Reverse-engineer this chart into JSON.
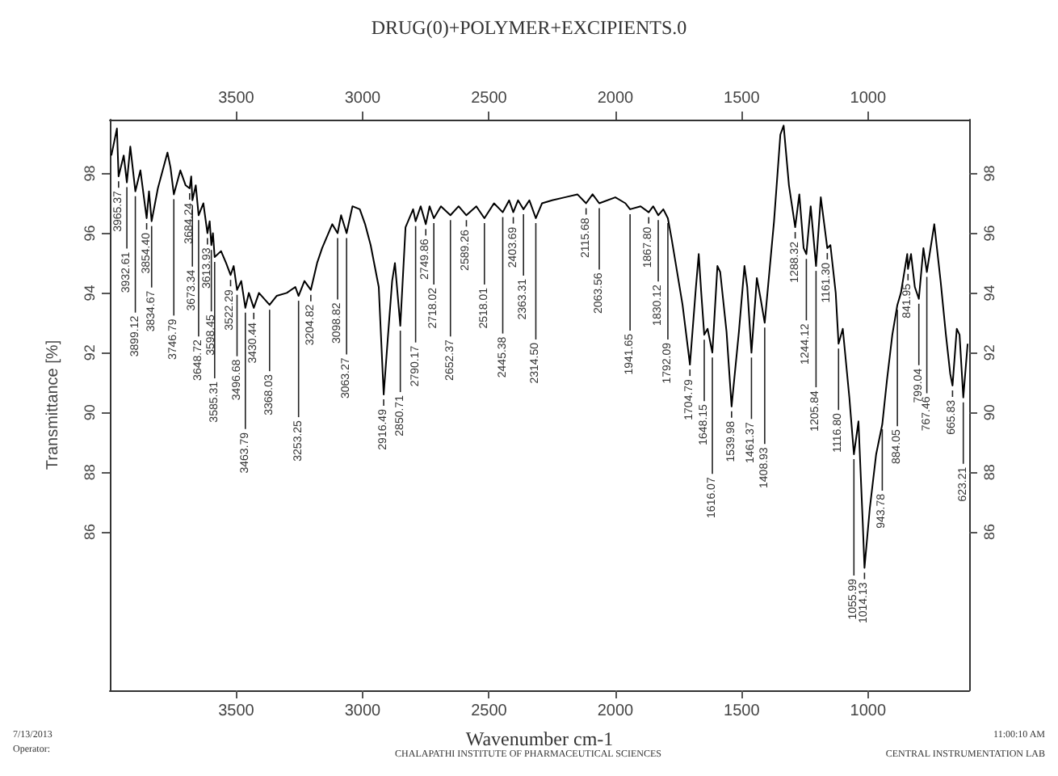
{
  "chart_data": {
    "type": "line",
    "title": "DRUG(0)+POLYMER+EXCIPIENTS.0",
    "xlabel": "Wavenumber cm-1",
    "ylabel": "Transmittance [%]",
    "xlim": [
      4000,
      600
    ],
    "xticks": [
      3500,
      3000,
      2500,
      2000,
      1500,
      1000
    ],
    "x2lim": [
      4000,
      600
    ],
    "x2ticks": [
      3500,
      3000,
      2500,
      2000,
      1500,
      1000
    ],
    "ylim": [
      80.7,
      99.8
    ],
    "yticks": [
      86,
      88,
      90,
      92,
      94,
      96,
      98
    ],
    "y2lim": [
      80.7,
      99.8
    ],
    "y2ticks": [
      86,
      88,
      90,
      92,
      94,
      96,
      98
    ],
    "grid": false,
    "marker": "none",
    "series": [
      {
        "color": "#000000",
        "x": [
          3994,
          3972,
          3965.37,
          3945,
          3932.61,
          3919,
          3899.12,
          3879,
          3854.4,
          3845,
          3834.67,
          3810,
          3772,
          3760,
          3746.79,
          3721,
          3700,
          3684.24,
          3678,
          3673.34,
          3660,
          3648.72,
          3630,
          3613.93,
          3605,
          3598.45,
          3592,
          3585.31,
          3560,
          3540,
          3522.29,
          3510,
          3496.68,
          3480,
          3463.79,
          3450,
          3430.44,
          3410,
          3368.03,
          3340,
          3300,
          3266,
          3253.25,
          3230,
          3204.82,
          3180,
          3160,
          3120,
          3098.82,
          3085,
          3063.27,
          3040,
          3011,
          2990,
          2968,
          2936,
          2916.49,
          2900,
          2883,
          2872,
          2850.71,
          2830,
          2800,
          2790.17,
          2770,
          2749.86,
          2735,
          2718.02,
          2690,
          2652.37,
          2620,
          2589.26,
          2550,
          2518.01,
          2480,
          2445.38,
          2420,
          2403.69,
          2385,
          2363.31,
          2340,
          2314.5,
          2290,
          2250,
          2200,
          2150,
          2115.68,
          2090,
          2063.56,
          2000,
          1960,
          1941.65,
          1900,
          1867.8,
          1850,
          1830.12,
          1810,
          1792.09,
          1777,
          1734,
          1704.79,
          1681,
          1670,
          1660,
          1648.15,
          1635,
          1616.07,
          1596,
          1585,
          1560,
          1539.98,
          1511,
          1489,
          1478,
          1461.37,
          1440,
          1425,
          1408.93,
          1372,
          1347,
          1334,
          1313,
          1288.32,
          1272,
          1255,
          1244.12,
          1227,
          1205.84,
          1187,
          1161.3,
          1149,
          1128,
          1116.8,
          1100,
          1074,
          1055.99,
          1038,
          1021,
          1014.13,
          993,
          968,
          943.78,
          925,
          904,
          884.05,
          870,
          845,
          841.95,
          830,
          815,
          799.04,
          781,
          767.46,
          738,
          713,
          692,
          675,
          665.83,
          649,
          638,
          623.21,
          606
        ],
        "values": [
          98.6,
          99.5,
          97.9,
          98.6,
          97.7,
          98.9,
          97.4,
          98.1,
          96.5,
          97.4,
          96.4,
          97.5,
          98.7,
          98.2,
          97.3,
          98.1,
          97.6,
          97.5,
          97.9,
          97.1,
          97.6,
          96.6,
          97.0,
          96.0,
          96.4,
          95.6,
          96.0,
          95.2,
          95.4,
          95.0,
          94.6,
          94.9,
          94.1,
          94.4,
          93.5,
          94.0,
          93.5,
          94.0,
          93.6,
          93.9,
          94.0,
          94.2,
          93.9,
          94.4,
          94.1,
          95.0,
          95.5,
          96.3,
          96.0,
          96.6,
          96.0,
          96.9,
          96.8,
          96.3,
          95.6,
          94.2,
          90.6,
          92.5,
          94.4,
          95.0,
          92.9,
          96.2,
          96.8,
          96.4,
          96.9,
          96.3,
          96.9,
          96.5,
          96.9,
          96.6,
          96.9,
          96.6,
          96.9,
          96.5,
          97.0,
          96.7,
          97.1,
          96.7,
          97.1,
          96.8,
          97.1,
          96.5,
          97.0,
          97.1,
          97.2,
          97.3,
          97.0,
          97.3,
          97.0,
          97.2,
          97.0,
          96.8,
          96.9,
          96.7,
          96.9,
          96.6,
          96.8,
          96.5,
          95.8,
          93.6,
          91.6,
          94.2,
          95.3,
          94.0,
          92.6,
          92.8,
          92.0,
          94.9,
          94.7,
          92.7,
          90.2,
          92.7,
          94.9,
          94.2,
          92.0,
          94.5,
          93.8,
          93.0,
          96.4,
          99.3,
          99.6,
          97.6,
          96.2,
          97.3,
          95.5,
          95.3,
          96.9,
          94.9,
          97.2,
          95.5,
          95.6,
          94.0,
          92.3,
          92.8,
          90.5,
          88.6,
          89.7,
          86.3,
          84.8,
          86.8,
          88.6,
          89.6,
          91.1,
          92.6,
          93.6,
          94.0,
          95.3,
          94.8,
          95.3,
          94.2,
          93.8,
          95.5,
          94.7,
          96.3,
          94.4,
          92.6,
          91.3,
          90.9,
          92.8,
          92.6,
          90.5,
          92.3
        ]
      }
    ],
    "annotations": [
      {
        "text": "3965.37",
        "x": 3965.37,
        "y": 97.9
      },
      {
        "text": "3932.61",
        "x": 3932.61,
        "y": 97.7
      },
      {
        "text": "3899.12",
        "x": 3899.12,
        "y": 97.4
      },
      {
        "text": "3854.40",
        "x": 3854.4,
        "y": 96.5
      },
      {
        "text": "3834.67",
        "x": 3834.67,
        "y": 96.4
      },
      {
        "text": "3746.79",
        "x": 3746.79,
        "y": 97.3
      },
      {
        "text": "3684.24",
        "x": 3684.24,
        "y": 97.5
      },
      {
        "text": "3673.34",
        "x": 3673.34,
        "y": 97.1
      },
      {
        "text": "3648.72",
        "x": 3648.72,
        "y": 96.6
      },
      {
        "text": "3613.93",
        "x": 3613.93,
        "y": 96.0
      },
      {
        "text": "3598.45",
        "x": 3598.45,
        "y": 95.6
      },
      {
        "text": "3585.31",
        "x": 3585.31,
        "y": 95.2
      },
      {
        "text": "3522.29",
        "x": 3522.29,
        "y": 94.6
      },
      {
        "text": "3496.68",
        "x": 3496.68,
        "y": 94.1
      },
      {
        "text": "3463.79",
        "x": 3463.79,
        "y": 93.5
      },
      {
        "text": "3430.44",
        "x": 3430.44,
        "y": 93.5
      },
      {
        "text": "3368.03",
        "x": 3368.03,
        "y": 93.6
      },
      {
        "text": "3253.25",
        "x": 3253.25,
        "y": 93.9
      },
      {
        "text": "3204.82",
        "x": 3204.82,
        "y": 94.1
      },
      {
        "text": "3098.82",
        "x": 3098.82,
        "y": 96.0
      },
      {
        "text": "3063.27",
        "x": 3063.27,
        "y": 96.0
      },
      {
        "text": "2916.49",
        "x": 2916.49,
        "y": 90.6
      },
      {
        "text": "2850.71",
        "x": 2850.71,
        "y": 92.9
      },
      {
        "text": "2790.17",
        "x": 2790.17,
        "y": 96.4
      },
      {
        "text": "2749.86",
        "x": 2749.86,
        "y": 96.3
      },
      {
        "text": "2718.02",
        "x": 2718.02,
        "y": 96.5
      },
      {
        "text": "2652.37",
        "x": 2652.37,
        "y": 96.6
      },
      {
        "text": "2589.26",
        "x": 2589.26,
        "y": 96.6
      },
      {
        "text": "2518.01",
        "x": 2518.01,
        "y": 96.5
      },
      {
        "text": "2445.38",
        "x": 2445.38,
        "y": 96.7
      },
      {
        "text": "2403.69",
        "x": 2403.69,
        "y": 96.7
      },
      {
        "text": "2363.31",
        "x": 2363.31,
        "y": 96.8
      },
      {
        "text": "2314.50",
        "x": 2314.5,
        "y": 96.5
      },
      {
        "text": "2115.68",
        "x": 2115.68,
        "y": 97.0
      },
      {
        "text": "2063.56",
        "x": 2063.56,
        "y": 97.0
      },
      {
        "text": "1941.65",
        "x": 1941.65,
        "y": 96.8
      },
      {
        "text": "1867.80",
        "x": 1867.8,
        "y": 96.7
      },
      {
        "text": "1830.12",
        "x": 1830.12,
        "y": 96.6
      },
      {
        "text": "1792.09",
        "x": 1792.09,
        "y": 96.5
      },
      {
        "text": "1704.79",
        "x": 1704.79,
        "y": 91.6
      },
      {
        "text": "1648.15",
        "x": 1648.15,
        "y": 92.6
      },
      {
        "text": "1616.07",
        "x": 1616.07,
        "y": 92.0
      },
      {
        "text": "1539.98",
        "x": 1539.98,
        "y": 90.2
      },
      {
        "text": "1461.37",
        "x": 1461.37,
        "y": 92.0
      },
      {
        "text": "1408.93",
        "x": 1408.93,
        "y": 93.0
      },
      {
        "text": "1288.32",
        "x": 1288.32,
        "y": 96.2
      },
      {
        "text": "1244.12",
        "x": 1244.12,
        "y": 95.3
      },
      {
        "text": "1205.84",
        "x": 1205.84,
        "y": 94.9
      },
      {
        "text": "1161.30",
        "x": 1161.3,
        "y": 95.5
      },
      {
        "text": "1116.80",
        "x": 1116.8,
        "y": 92.3
      },
      {
        "text": "1055.99",
        "x": 1055.99,
        "y": 88.6
      },
      {
        "text": "1014.13",
        "x": 1014.13,
        "y": 84.8
      },
      {
        "text": "943.78",
        "x": 943.78,
        "y": 89.6
      },
      {
        "text": "884.05",
        "x": 884.05,
        "y": 93.6
      },
      {
        "text": "841.95",
        "x": 841.95,
        "y": 94.8
      },
      {
        "text": "799.04",
        "x": 799.04,
        "y": 93.8
      },
      {
        "text": "767.46",
        "x": 767.46,
        "y": 94.7
      },
      {
        "text": "665.83",
        "x": 665.83,
        "y": 90.9
      },
      {
        "text": "623.21",
        "x": 623.21,
        "y": 90.5
      },
      "7/13/2013",
      "Operator:",
      "CHALAPATHI INSTITUTE OF PHARMACEUTICAL SCIENCES",
      "11:00:10 AM",
      "CENTRAL INSTRUMENTATION LAB"
    ]
  }
}
